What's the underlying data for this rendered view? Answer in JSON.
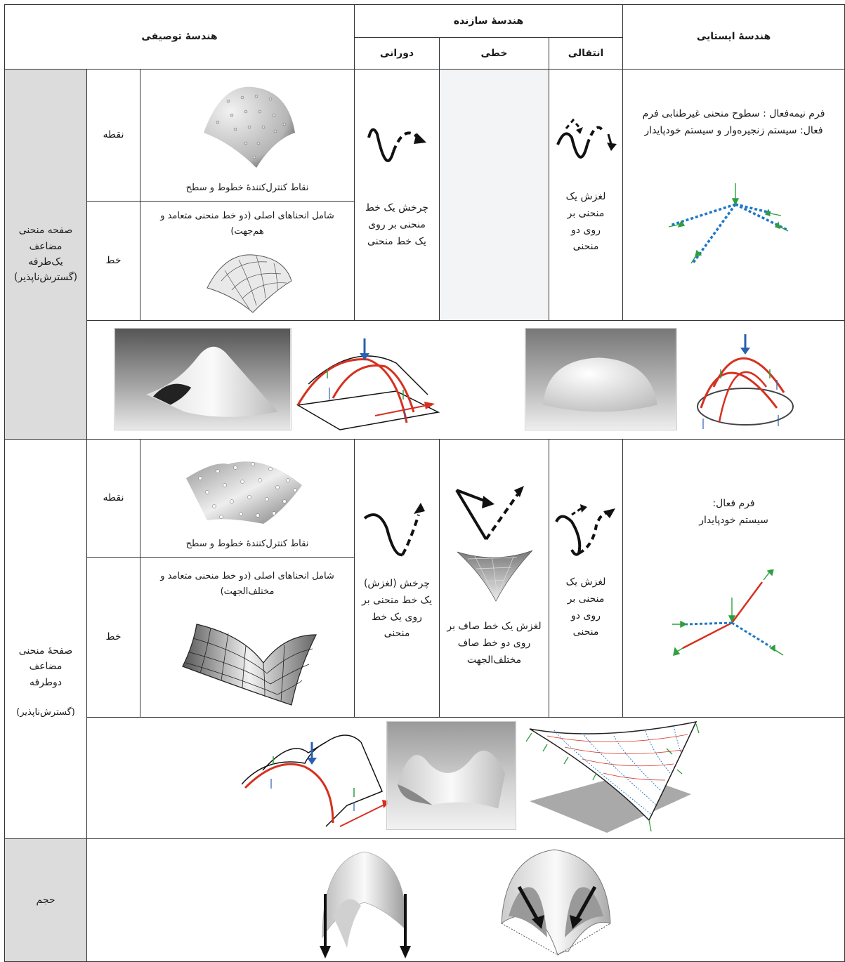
{
  "headers": {
    "static": "هندسهٔ ایستایی",
    "constructive": "هندسهٔ سازنده",
    "descriptive": "هندسهٔ توصیفی",
    "translational": "انتقالی",
    "linear": "خطی",
    "rotational": "دورانی"
  },
  "section1": {
    "label_lines": [
      "صفحه منحنی",
      "مضاعف",
      "یک‌طرفه",
      "(گسترش‌ناپذیر)"
    ],
    "point_label": "نقطه",
    "line_label": "خط",
    "static_text": "فرم نیمه‌فعال : سطوح منحنی غیرطنابی فرم فعال: سیستم زنجیره‌وار و سیستم خودپایدار",
    "translational_text": "لغزش یک منحنی بر روی دو منحنی",
    "rotational_text": "چرخش یک خط منحنی بر روی یک خط منحنی",
    "point_caption": "نقاط کنترل‌کنندهٔ خطوط و سطح",
    "line_caption": "شامل انحناهای اصلی (دو خط منحنی متعامد و هم‌جهت)"
  },
  "section2": {
    "label_lines": [
      "صفحهٔ منحنی",
      "مضاعف",
      "دوطرفه",
      "",
      "(گسترش‌ناپذیر)"
    ],
    "point_label": "نقطه",
    "line_label": "خط",
    "static_text_title": "فرم فعال:",
    "static_text_body": "سیستم خودپایدار",
    "translational_text": "لغزش یک منحنی بر روی دو منحنی",
    "linear_text": "لغزش یک خط صاف بر روی دو خط صاف مختلف‌الجهت",
    "rotational_text": "چرخش (لغزش) یک خط منحنی بر روی یک خط منحنی",
    "point_caption": "نقاط کنترل‌کنندهٔ خطوط و سطح",
    "line_caption": "شامل انحناهای اصلی (دو خط منحنی متعامد و مختلف‌الجهت)"
  },
  "section3": {
    "label": "حجم"
  },
  "colors": {
    "red": "#d7301f",
    "blue": "#2b5fb0",
    "green": "#2e9e3e",
    "dotted_blue": "#1f77c8"
  }
}
